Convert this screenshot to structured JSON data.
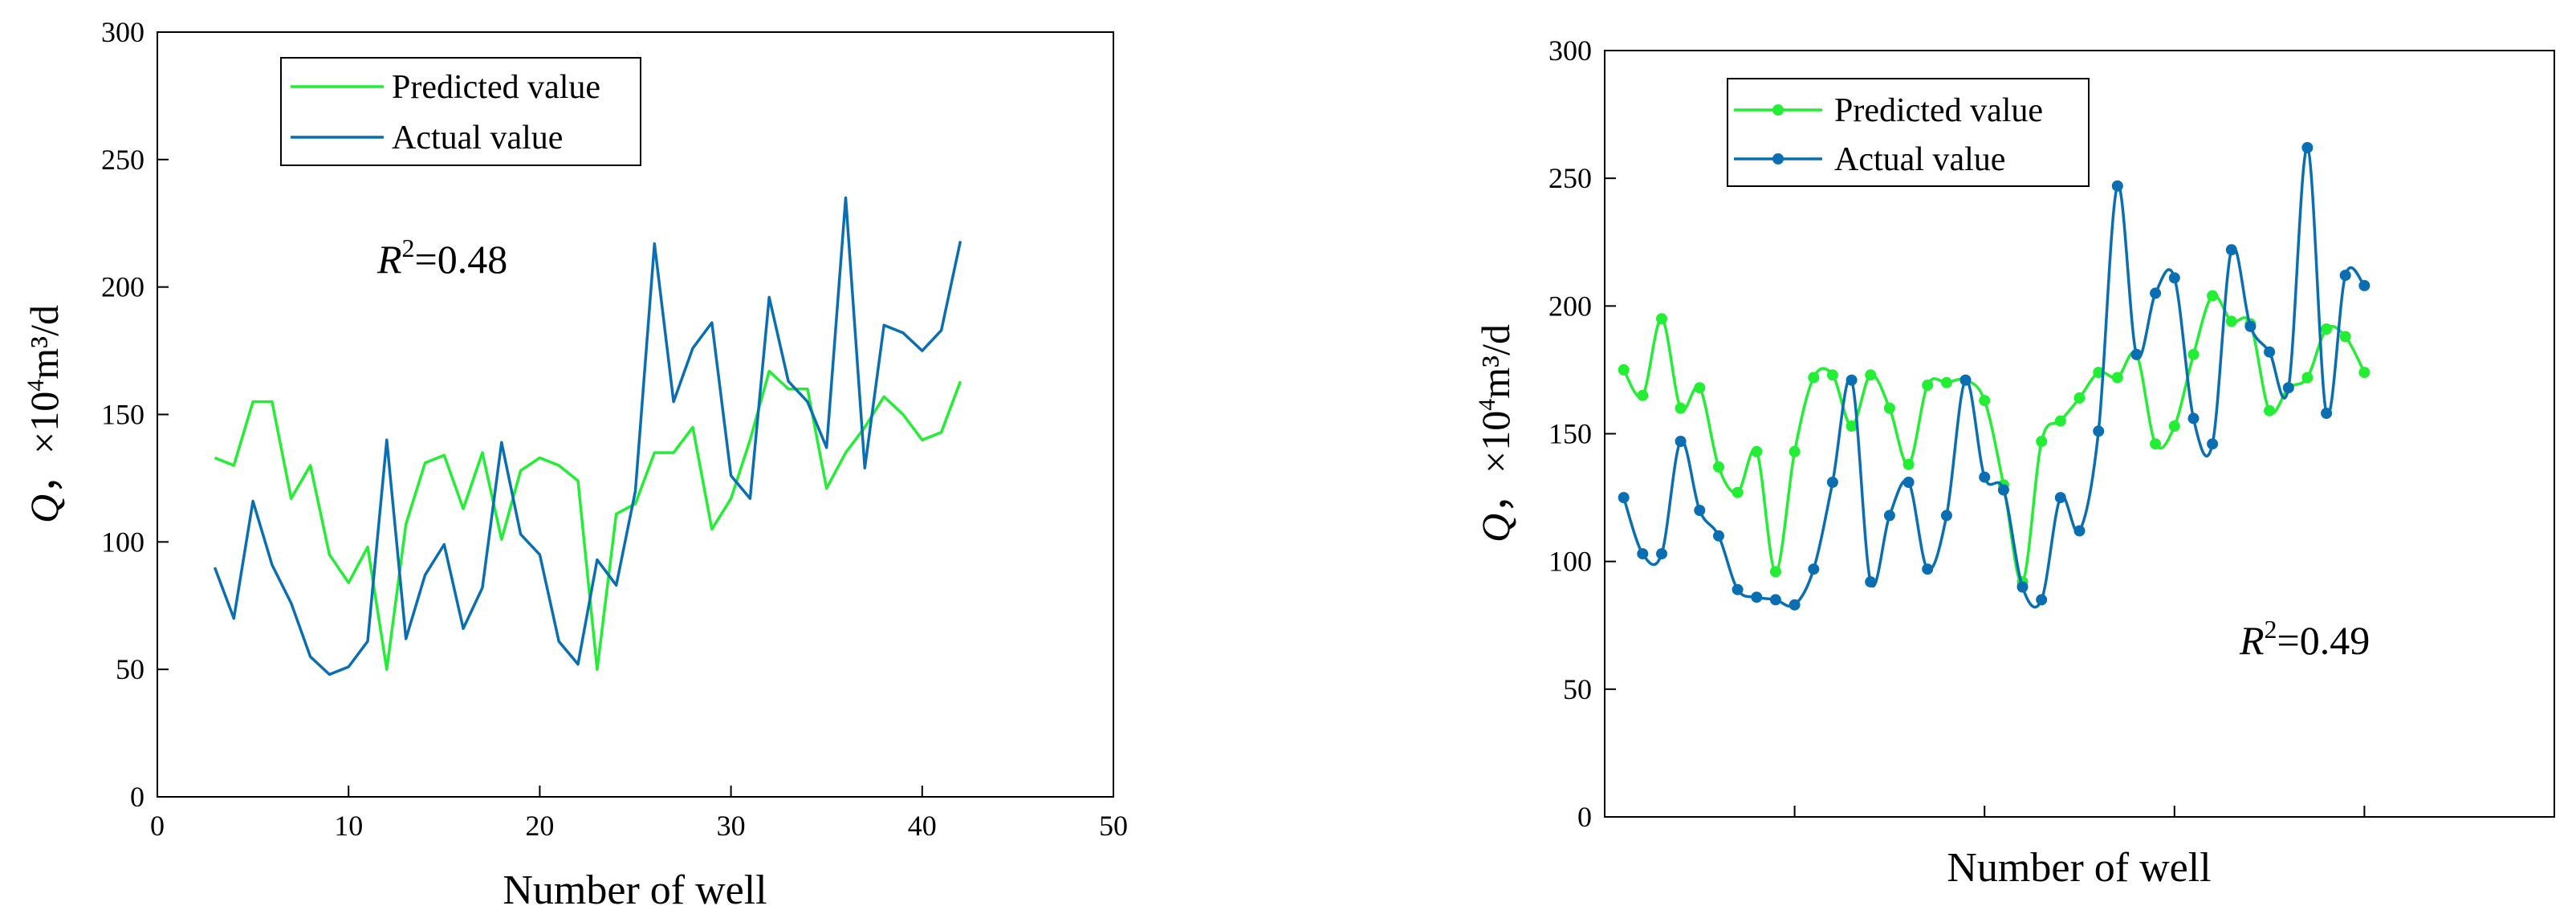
{
  "chart_data": [
    {
      "type": "line",
      "title": "",
      "xlabel": "Number of well",
      "ylabel": "Q，×10⁴m³/d",
      "ylabel_parts": {
        "q": "Q",
        "sep": "，",
        "mult": "×10",
        "exp": "4",
        "unit": "m³/d"
      },
      "xlim": [
        0,
        50
      ],
      "ylim": [
        0,
        300
      ],
      "xticks": [
        0,
        10,
        20,
        30,
        40,
        50
      ],
      "yticks": [
        0,
        50,
        100,
        150,
        200,
        250,
        300
      ],
      "x_tick_labels_visible": true,
      "grid": false,
      "legend_position": "top-left",
      "annotation": {
        "r": "R",
        "sup": "2",
        "value": "=0.48"
      },
      "smooth": false,
      "markers": false,
      "x": [
        3,
        4,
        5,
        6,
        7,
        8,
        9,
        10,
        11,
        12,
        13,
        14,
        15,
        16,
        17,
        18,
        19,
        20,
        21,
        22,
        23,
        24,
        25,
        26,
        27,
        28,
        29,
        30,
        31,
        32,
        33,
        34,
        35,
        36,
        37,
        38,
        39,
        40,
        41,
        42,
        43
      ],
      "series": [
        {
          "name": "Predicted value",
          "color": "#22ee33",
          "values": [
            133,
            130,
            155,
            155,
            117,
            130,
            95,
            84,
            98,
            50,
            107,
            131,
            134,
            113,
            135,
            101,
            128,
            133,
            130,
            124,
            50,
            111,
            115,
            135,
            135,
            145,
            105,
            117,
            140,
            167,
            160,
            160,
            121,
            135,
            145,
            157,
            150,
            140,
            143,
            163,
            null
          ]
        },
        {
          "name": "Actual value",
          "color": "#0a6fb2",
          "values": [
            90,
            70,
            116,
            91,
            76,
            55,
            48,
            51,
            61,
            140,
            62,
            87,
            99,
            66,
            82,
            139,
            103,
            95,
            61,
            52,
            93,
            83,
            120,
            217,
            155,
            176,
            186,
            126,
            117,
            196,
            163,
            155,
            137,
            235,
            129,
            185,
            182,
            175,
            183,
            218,
            null
          ]
        }
      ]
    },
    {
      "type": "line",
      "title": "",
      "xlabel": "Number of well",
      "ylabel": "Q，×10⁴m³/d",
      "ylabel_parts": {
        "q": "Q",
        "sep": "，",
        "mult": "×10",
        "exp": "4",
        "unit": "m³/d"
      },
      "xlim": [
        0,
        50
      ],
      "ylim": [
        0,
        300
      ],
      "yticks": [
        0,
        50,
        100,
        150,
        200,
        250,
        300
      ],
      "x_tick_labels_visible": false,
      "grid": false,
      "legend_position": "top-left",
      "annotation": {
        "r": "R",
        "sup": "2",
        "value": "=0.49"
      },
      "smooth": true,
      "markers": true,
      "x": [
        1,
        2,
        3,
        4,
        5,
        6,
        7,
        8,
        9,
        10,
        11,
        12,
        13,
        14,
        15,
        16,
        17,
        18,
        19,
        20,
        21,
        22,
        23,
        24,
        25,
        26,
        27,
        28,
        29,
        30,
        31,
        32,
        33,
        34,
        35,
        36,
        37,
        38,
        39,
        40,
        41,
        42,
        43,
        44,
        45,
        46,
        47,
        48,
        49
      ],
      "series": [
        {
          "name": "Predicted value",
          "color": "#22ee33",
          "values": [
            175,
            165,
            195,
            160,
            168,
            137,
            127,
            143,
            96,
            143,
            172,
            173,
            153,
            173,
            160,
            138,
            169,
            170,
            171,
            163,
            130,
            92,
            147,
            155,
            164,
            174,
            172,
            181,
            146,
            153,
            181,
            204,
            194,
            193,
            159,
            168,
            172,
            191,
            188,
            174,
            null,
            null,
            null,
            null,
            null,
            null,
            null,
            null,
            null
          ]
        },
        {
          "name": "Actual value",
          "color": "#0a6fb2",
          "values": [
            125,
            103,
            103,
            147,
            120,
            110,
            89,
            86,
            85,
            83,
            97,
            131,
            171,
            92,
            118,
            131,
            97,
            118,
            171,
            133,
            128,
            90,
            85,
            125,
            112,
            151,
            247,
            181,
            205,
            211,
            156,
            146,
            222,
            192,
            182,
            168,
            262,
            158,
            212,
            208,
            null,
            null,
            null,
            null,
            null,
            null,
            null,
            null,
            null
          ]
        }
      ]
    }
  ]
}
